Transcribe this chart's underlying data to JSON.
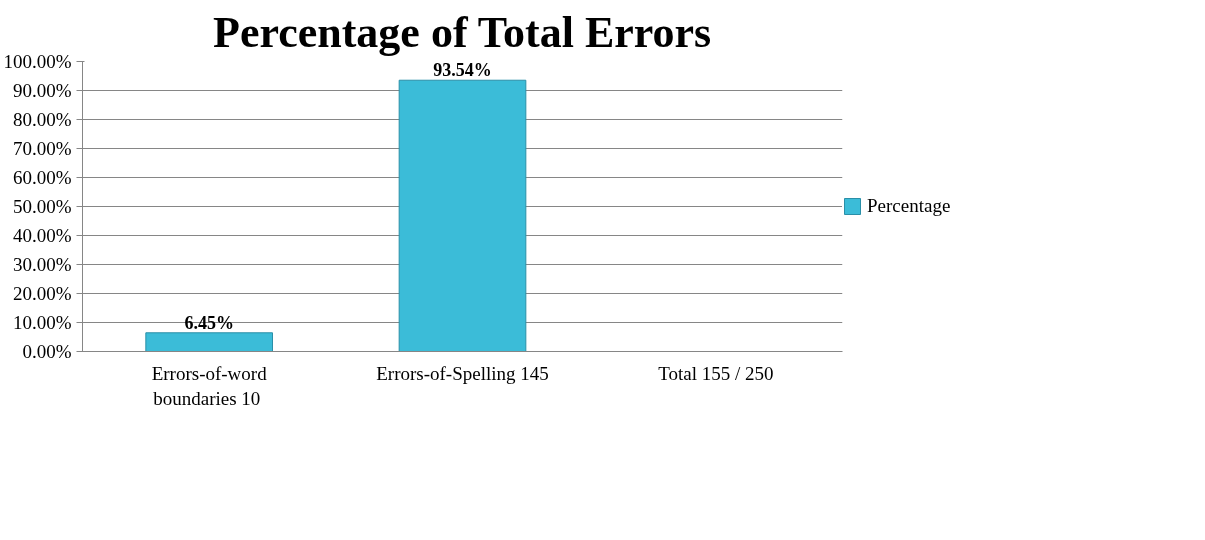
{
  "chart_data": {
    "type": "bar",
    "title": "Percentage of Total Errors",
    "categories": [
      "Errors-of-word\nboundaries  10",
      "Errors-of-Spelling 145",
      "Total 155 / 250"
    ],
    "series": [
      {
        "name": "Percentage",
        "color": "#3bbcd8",
        "values": [
          6.45,
          93.54,
          null
        ],
        "value_labels": [
          "6.45%",
          "93.54%",
          null
        ]
      }
    ],
    "ylim": [
      0,
      100
    ],
    "yticks": [
      {
        "value": 0,
        "label": "0.00%"
      },
      {
        "value": 10,
        "label": "10.00%"
      },
      {
        "value": 20,
        "label": "20.00%"
      },
      {
        "value": 30,
        "label": "30.00%"
      },
      {
        "value": 40,
        "label": "40.00%"
      },
      {
        "value": 50,
        "label": "50.00%"
      },
      {
        "value": 60,
        "label": "60.00%"
      },
      {
        "value": 70,
        "label": "70.00%"
      },
      {
        "value": 80,
        "label": "80.00%"
      },
      {
        "value": 90,
        "label": "90.00%"
      },
      {
        "value": 100,
        "label": "100.00%"
      }
    ],
    "grid": "y",
    "legend": "right"
  }
}
